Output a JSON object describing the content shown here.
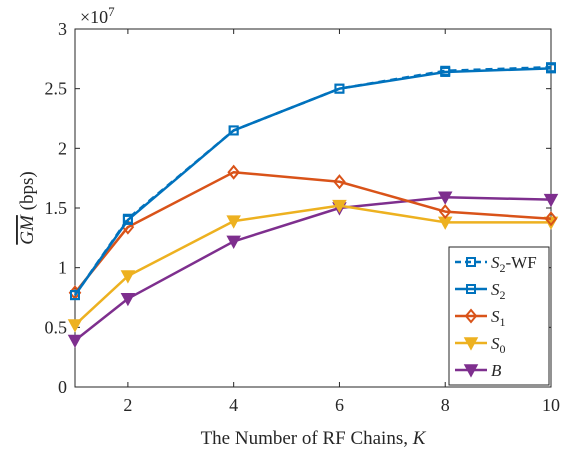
{
  "chart_data": {
    "type": "line",
    "xlabel": "The Number of RF Chains, K",
    "xlabel_parts": {
      "text": "The Number of RF Chains, ",
      "var": "K"
    },
    "ylabel": "GM (bps)",
    "ylabel_parts": {
      "var": "GM",
      "unit": "(bps)"
    },
    "y_multiplier": "×10",
    "y_multiplier_exp": "7",
    "xlim": [
      1,
      10
    ],
    "ylim": [
      0,
      3
    ],
    "xticks": [
      2,
      4,
      6,
      8,
      10
    ],
    "xtick_labels": [
      "2",
      "4",
      "6",
      "8",
      "10"
    ],
    "yticks": [
      0,
      0.5,
      1,
      1.5,
      2,
      2.5,
      3
    ],
    "ytick_labels": [
      "0",
      "0.5",
      "1",
      "1.5",
      "2",
      "2.5",
      "3"
    ],
    "x": [
      1,
      2,
      4,
      6,
      8,
      10
    ],
    "legend_position": "bottom-right",
    "grid": false,
    "series": [
      {
        "name": "S2-WF",
        "legend_main": "S",
        "legend_sub": "2",
        "legend_suffix": "-WF",
        "color": "#0072BD",
        "marker": "square",
        "dashed": true,
        "values": [
          0.77,
          1.41,
          2.15,
          2.5,
          2.65,
          2.68
        ]
      },
      {
        "name": "S2",
        "legend_main": "S",
        "legend_sub": "2",
        "legend_suffix": "",
        "color": "#0072BD",
        "marker": "square",
        "dashed": false,
        "values": [
          0.77,
          1.4,
          2.15,
          2.5,
          2.64,
          2.67
        ]
      },
      {
        "name": "S1",
        "legend_main": "S",
        "legend_sub": "1",
        "legend_suffix": "",
        "color": "#D95319",
        "marker": "diamond",
        "dashed": false,
        "values": [
          0.79,
          1.34,
          1.8,
          1.72,
          1.47,
          1.41
        ]
      },
      {
        "name": "S0",
        "legend_main": "S",
        "legend_sub": "0",
        "legend_suffix": "",
        "color": "#EDB120",
        "marker": "triangle-down",
        "dashed": false,
        "values": [
          0.52,
          0.93,
          1.39,
          1.52,
          1.38,
          1.38
        ]
      },
      {
        "name": "B",
        "legend_main": "B",
        "legend_sub": "",
        "legend_suffix": "",
        "color": "#7E2F8E",
        "marker": "triangle-down",
        "dashed": false,
        "values": [
          0.39,
          0.74,
          1.22,
          1.5,
          1.59,
          1.57
        ]
      }
    ]
  }
}
